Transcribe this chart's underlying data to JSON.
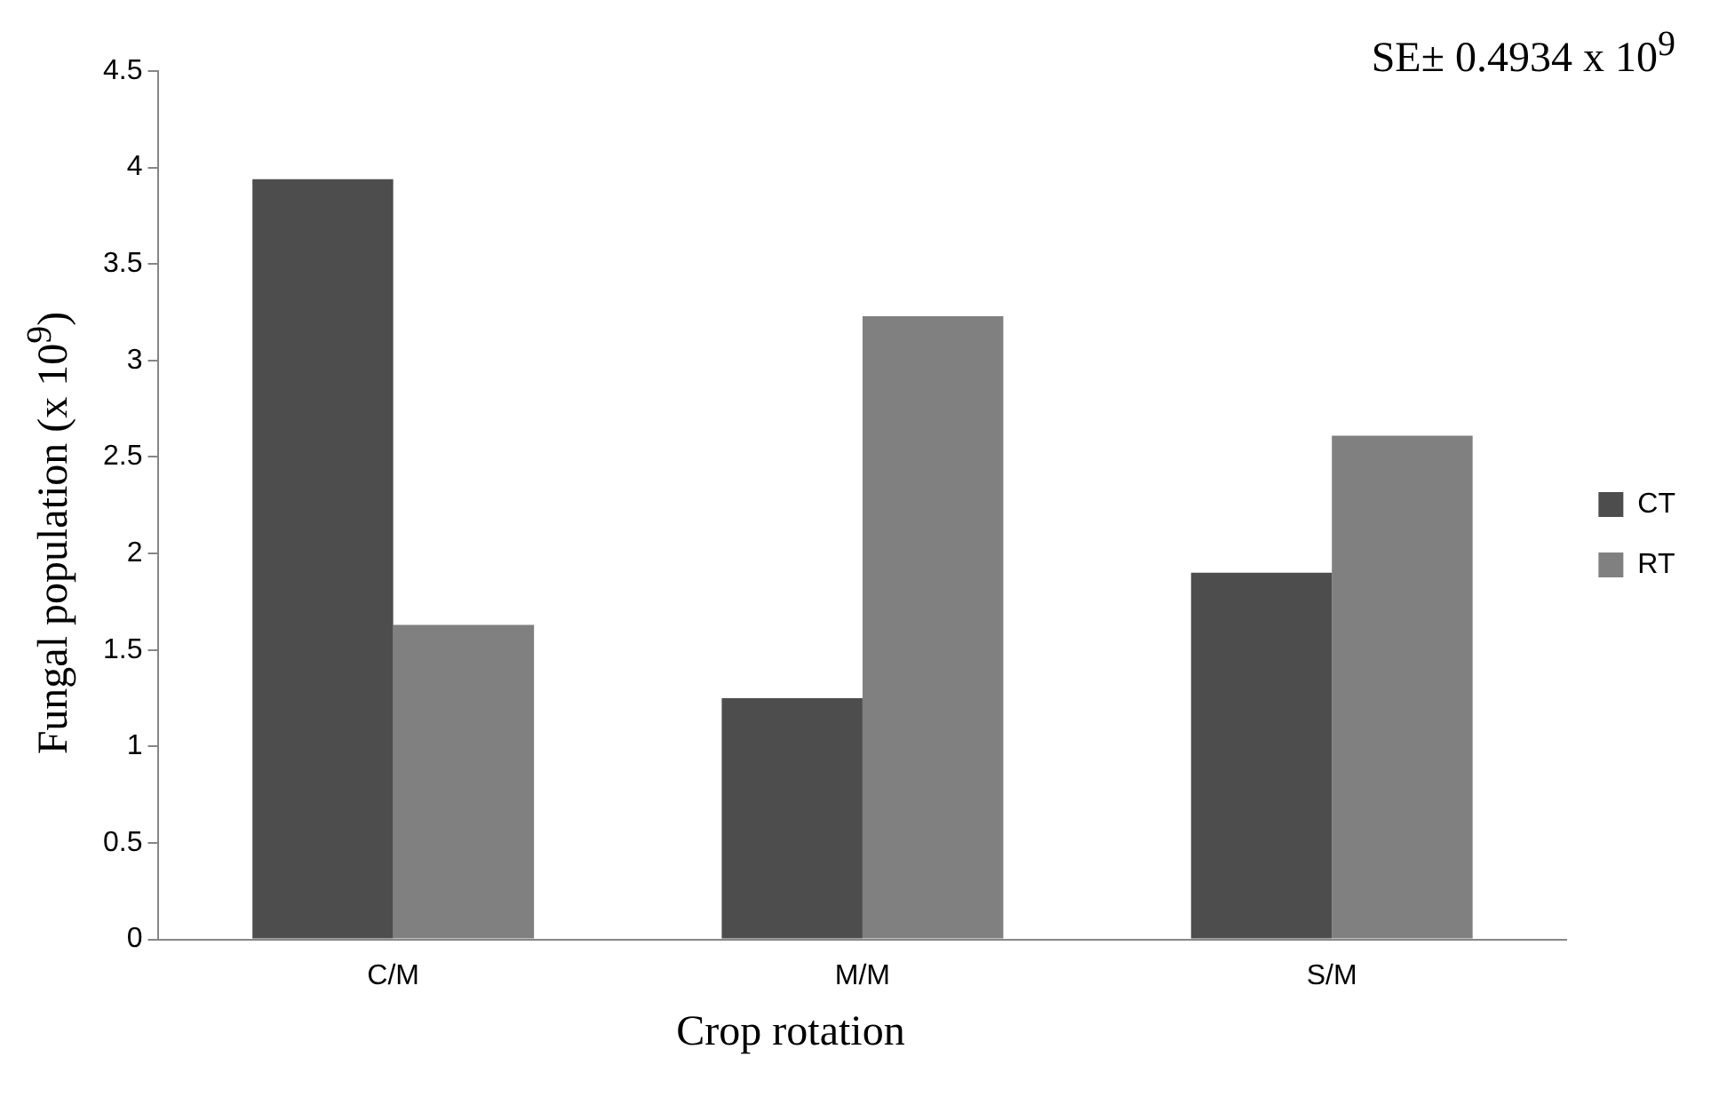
{
  "chart_data": {
    "type": "bar",
    "xlabel": "Crop rotation",
    "ylabel": "Fungal population (x 10$^{9}$)",
    "annotations": [
      "SE± 0.4934 x 10$^{9}$"
    ],
    "categories": [
      "C/M",
      "M/M",
      "S/M"
    ],
    "series": [
      {
        "name": "CT",
        "color": "#4d4d4d",
        "values": [
          3.94,
          1.25,
          1.9
        ]
      },
      {
        "name": "RT",
        "color": "#808080",
        "values": [
          1.63,
          3.23,
          2.61
        ]
      }
    ],
    "ylim": [
      0,
      4.5
    ],
    "yticks": [
      0,
      0.5,
      1,
      1.5,
      2,
      2.5,
      3,
      3.5,
      4,
      4.5
    ],
    "grid": false,
    "legend": "right"
  }
}
